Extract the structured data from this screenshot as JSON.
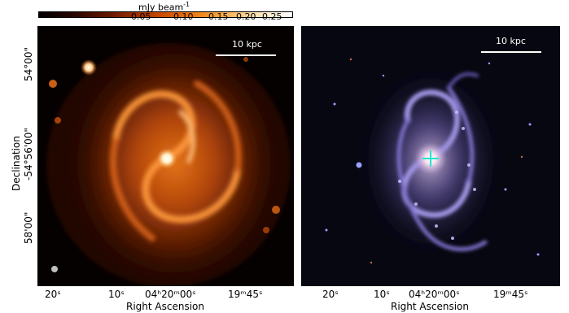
{
  "colorbar": {
    "title_main": "mJy beam",
    "title_exp": "-1",
    "ticks": [
      "0.05",
      "0.10",
      "0.15",
      "0.20",
      "0.25"
    ],
    "colors": [
      "#000000",
      "#2a0500",
      "#6b1800",
      "#b53a00",
      "#e86a05",
      "#f7a63b",
      "#fde2b5",
      "#ffffff"
    ]
  },
  "left_panel": {
    "scale_label": "10 kpc",
    "y_axis_label": "Declination",
    "y_ticks": [
      "54°00\"",
      "-54°56'00\"",
      "58'00\""
    ],
    "x_ticks": [
      "20ˢ",
      "10ˢ",
      "04ʰ20ᵐ00ˢ",
      "19ᵐ45ˢ"
    ],
    "x_axis_label": "Right Ascension",
    "palette": {
      "glow": "#f07a1a",
      "dim": "#5a1e05",
      "core": "#fff6e0"
    }
  },
  "right_panel": {
    "scale_label": "10 kpc",
    "x_ticks": [
      "20ˢ",
      "10ˢ",
      "04ʰ20ᵐ00ˢ",
      "19ᵐ45ˢ"
    ],
    "x_axis_label": "Right Ascension",
    "marker_color": "#22e5d0",
    "palette": {
      "arms": "#8f84d8",
      "bulge": "#f2d6e6",
      "bg": "#070712"
    }
  }
}
